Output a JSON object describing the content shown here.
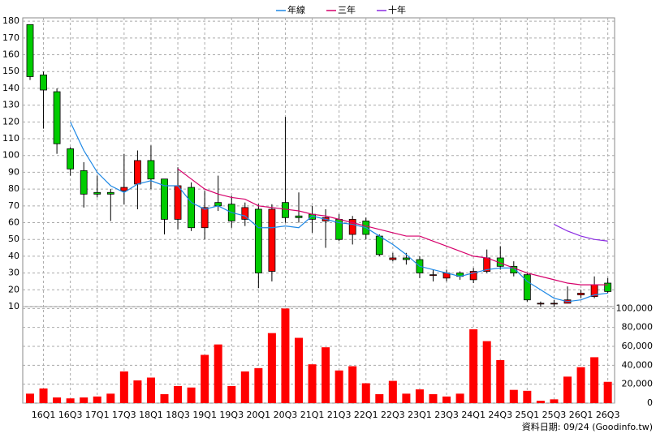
{
  "chart_data": [
    {
      "type": "candlestick",
      "categories": [
        null,
        "16Q1",
        null,
        "16Q3",
        null,
        "17Q1",
        null,
        "17Q3",
        null,
        "18Q1",
        null,
        "18Q3",
        null,
        "19Q1",
        null,
        "19Q3",
        null,
        "20Q1",
        null,
        "20Q3",
        null,
        "21Q1",
        null,
        "21Q3",
        null,
        "22Q1",
        null,
        "22Q3",
        null,
        "23Q1",
        null,
        "23Q3",
        null,
        "24Q1",
        null,
        "24Q3",
        null,
        "25Q1",
        null,
        "25Q3",
        null,
        "26Q1",
        null,
        "26Q3"
      ],
      "open": [
        178,
        148,
        138,
        104,
        91,
        78,
        78,
        79,
        83,
        97,
        86,
        62,
        81,
        57,
        72,
        71,
        62,
        68,
        31,
        72,
        64,
        65,
        61,
        62,
        53,
        61,
        52,
        38,
        39,
        38,
        29,
        27,
        30,
        26,
        31,
        39,
        34,
        29,
        12,
        12,
        12,
        17,
        16,
        24
      ],
      "high": [
        178,
        150,
        140,
        105,
        96,
        88,
        80,
        101,
        103,
        106,
        86,
        93,
        84,
        79,
        88,
        76,
        72,
        71,
        71,
        123,
        78,
        70,
        68,
        65,
        64,
        63,
        53,
        42,
        42,
        40,
        32,
        32,
        31,
        33,
        44,
        46,
        37,
        30,
        13,
        14,
        22,
        20,
        28,
        27
      ],
      "low": [
        145,
        116,
        101,
        88,
        69,
        75,
        61,
        71,
        68,
        80,
        53,
        56,
        55,
        50,
        67,
        57,
        58,
        21,
        25,
        60,
        60,
        54,
        45,
        49,
        47,
        50,
        40,
        37,
        35,
        27,
        25,
        25,
        26,
        24,
        30,
        32,
        28,
        13,
        10,
        10,
        12,
        15,
        15,
        18
      ],
      "close": [
        147,
        139,
        107,
        92,
        77,
        77,
        77,
        81,
        97,
        86,
        62,
        82,
        57,
        69,
        70,
        61,
        69,
        30,
        68,
        63,
        63,
        62,
        63,
        50,
        62,
        53,
        41,
        39,
        38,
        30,
        29,
        30,
        28,
        31,
        39,
        34,
        30,
        14,
        12,
        12,
        14,
        18,
        23,
        19
      ],
      "up_color": "#ff0000",
      "down_color": "#00cc00",
      "series": [
        {
          "name": "年線",
          "color": "#1e88e5",
          "values": [
            null,
            null,
            null,
            120,
            103,
            90,
            82,
            78,
            83,
            85,
            82,
            82,
            72,
            68,
            70,
            66,
            64,
            57,
            57,
            58,
            57,
            64,
            62,
            60,
            59,
            57,
            52,
            47,
            41,
            34,
            32,
            30,
            28,
            30,
            32,
            33,
            33,
            25,
            20,
            15,
            13,
            14,
            17,
            18
          ]
        },
        {
          "name": "三年",
          "color": "#d6006b",
          "values": [
            null,
            null,
            null,
            null,
            null,
            null,
            null,
            null,
            null,
            null,
            null,
            92,
            86,
            80,
            77,
            75,
            74,
            70,
            69,
            68,
            67,
            65,
            64,
            62,
            60,
            58,
            56,
            54,
            52,
            52,
            49,
            46,
            43,
            40,
            39,
            36,
            33,
            30,
            28,
            26,
            24,
            23,
            23,
            23
          ]
        },
        {
          "name": "十年",
          "color": "#8a2be2",
          "values": [
            null,
            null,
            null,
            null,
            null,
            null,
            null,
            null,
            null,
            null,
            null,
            null,
            null,
            null,
            null,
            null,
            null,
            null,
            null,
            null,
            null,
            null,
            null,
            null,
            null,
            null,
            null,
            null,
            null,
            null,
            null,
            null,
            null,
            null,
            null,
            null,
            null,
            null,
            null,
            59,
            55,
            52,
            50,
            49
          ]
        }
      ],
      "ylim": [
        10,
        182
      ],
      "yticks": [
        10,
        20,
        30,
        40,
        50,
        60,
        70,
        80,
        90,
        100,
        110,
        120,
        130,
        140,
        150,
        160,
        170,
        180
      ],
      "grid": true
    },
    {
      "type": "bar",
      "values": [
        10000,
        15500,
        6000,
        5000,
        6000,
        7000,
        10000,
        33500,
        24000,
        27000,
        9500,
        18000,
        16500,
        51000,
        62000,
        18000,
        33500,
        37000,
        74000,
        100000,
        69000,
        41000,
        59000,
        34500,
        39000,
        21000,
        9500,
        23500,
        10000,
        14500,
        9500,
        7000,
        10000,
        78000,
        65500,
        45500,
        14000,
        13000,
        2500,
        4000,
        28000,
        38000,
        48500,
        22500
      ],
      "color": "#ff0000",
      "ylim": [
        0,
        102000
      ],
      "yticks": [
        {
          "value": 0,
          "label": "0"
        },
        {
          "value": 20000,
          "label": "20,000"
        },
        {
          "value": 40000,
          "label": "40,000"
        },
        {
          "value": 60000,
          "label": "60,000"
        },
        {
          "value": 80000,
          "label": "80,000"
        },
        {
          "value": 100000,
          "label": "100,000"
        }
      ],
      "grid": true,
      "source": "資料日期: 09/24  (Goodinfo.tw)"
    }
  ]
}
